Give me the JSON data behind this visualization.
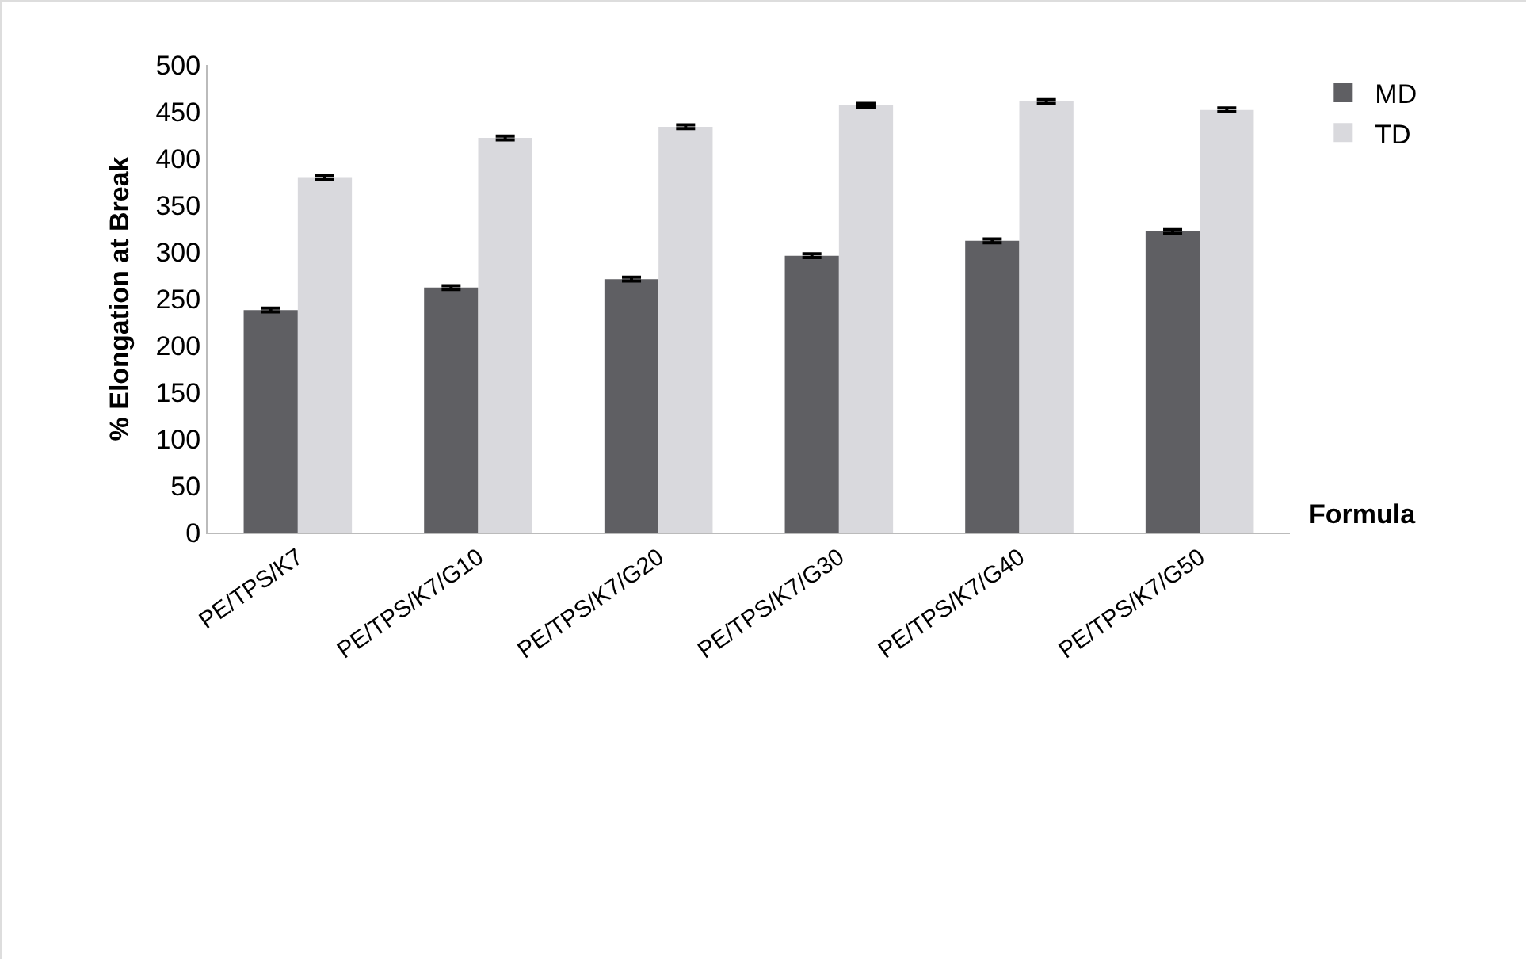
{
  "chart_data": {
    "type": "bar",
    "xlabel": "Formula",
    "ylabel": "% Elongation at Break",
    "categories": [
      "PE/TPS/K7",
      "PE/TPS/K7/G10",
      "PE/TPS/K7/G20",
      "PE/TPS/K7/G30",
      "PE/TPS/K7/G40",
      "PE/TPS/K7/G50"
    ],
    "series": [
      {
        "name": "MD",
        "color": "#5f5f63",
        "values": [
          238,
          262,
          271,
          296,
          312,
          322
        ],
        "errors": [
          2,
          2,
          2,
          2,
          2,
          2
        ]
      },
      {
        "name": "TD",
        "color": "#d9d9dd",
        "values": [
          380,
          422,
          434,
          457,
          461,
          452
        ],
        "errors": [
          2,
          2,
          2,
          2,
          2,
          2
        ]
      }
    ],
    "ylim": [
      0,
      500
    ],
    "yticks": [
      0,
      50,
      100,
      150,
      200,
      250,
      300,
      350,
      400,
      450,
      500
    ],
    "grid": false,
    "legend": "top right"
  }
}
